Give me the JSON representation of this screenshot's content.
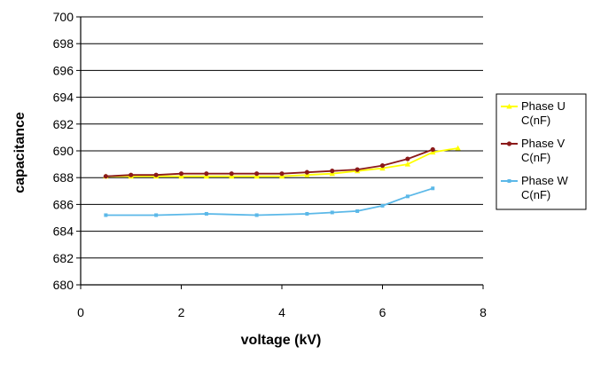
{
  "chart_data": {
    "type": "line",
    "title": "",
    "xlabel": "voltage (kV)",
    "ylabel": "capacitance",
    "xlim": [
      0,
      8
    ],
    "ylim": [
      680,
      700
    ],
    "x_ticks": [
      "0",
      "2",
      "4",
      "6",
      "8"
    ],
    "y_ticks": [
      "680",
      "682",
      "684",
      "686",
      "688",
      "690",
      "692",
      "694",
      "696",
      "698",
      "700"
    ],
    "grid": {
      "horizontal": true,
      "vertical": false
    },
    "legend_position": "right",
    "series": [
      {
        "name": "Phase U C(nF)",
        "name_lines": [
          "Phase U",
          "C(nF)"
        ],
        "color": "#ffff00",
        "marker": "triangle",
        "points": [
          [
            0.5,
            688.1
          ],
          [
            1.0,
            688.1
          ],
          [
            1.5,
            688.1
          ],
          [
            2.0,
            688.1
          ],
          [
            2.5,
            688.1
          ],
          [
            3.0,
            688.1
          ],
          [
            3.5,
            688.1
          ],
          [
            4.0,
            688.1
          ],
          [
            4.5,
            688.2
          ],
          [
            5.0,
            688.3
          ],
          [
            5.5,
            688.5
          ],
          [
            6.0,
            688.7
          ],
          [
            6.5,
            689.0
          ],
          [
            7.0,
            689.9
          ],
          [
            7.5,
            690.2
          ]
        ]
      },
      {
        "name": "Phase V C(nF)",
        "name_lines": [
          "Phase V",
          "C(nF)"
        ],
        "color": "#8b1a1a",
        "marker": "circle",
        "points": [
          [
            0.5,
            688.1
          ],
          [
            1.0,
            688.2
          ],
          [
            1.5,
            688.2
          ],
          [
            2.0,
            688.3
          ],
          [
            2.5,
            688.3
          ],
          [
            3.0,
            688.3
          ],
          [
            3.5,
            688.3
          ],
          [
            4.0,
            688.3
          ],
          [
            4.5,
            688.4
          ],
          [
            5.0,
            688.5
          ],
          [
            5.5,
            688.6
          ],
          [
            6.0,
            688.9
          ],
          [
            6.5,
            689.4
          ],
          [
            7.0,
            690.1
          ]
        ]
      },
      {
        "name": "Phase W C(nF)",
        "name_lines": [
          "Phase W",
          "C(nF)"
        ],
        "color": "#5bb8e8",
        "marker": "square",
        "points": [
          [
            0.5,
            685.2
          ],
          [
            1.5,
            685.2
          ],
          [
            2.5,
            685.3
          ],
          [
            3.5,
            685.2
          ],
          [
            4.5,
            685.3
          ],
          [
            5.0,
            685.4
          ],
          [
            5.5,
            685.5
          ],
          [
            6.0,
            685.9
          ],
          [
            6.5,
            686.6
          ],
          [
            7.0,
            687.2
          ]
        ]
      }
    ]
  }
}
